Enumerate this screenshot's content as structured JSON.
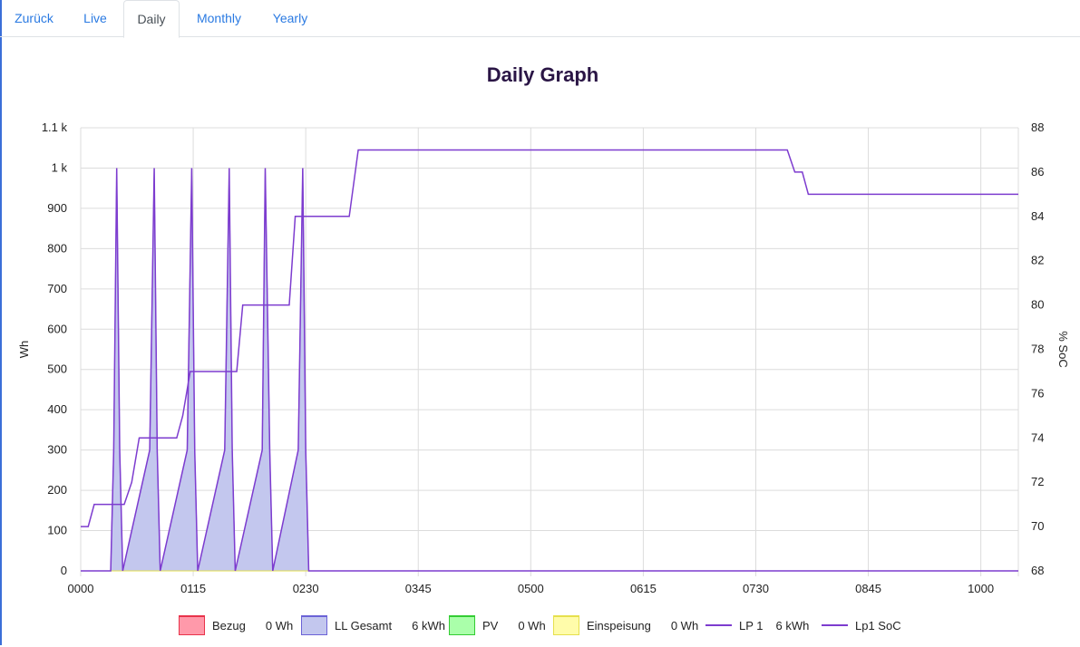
{
  "tabs": [
    {
      "label": "Zurück",
      "active": false
    },
    {
      "label": "Live",
      "active": false
    },
    {
      "label": "Daily",
      "active": true
    },
    {
      "label": "Monthly",
      "active": false
    },
    {
      "label": "Yearly",
      "active": false
    }
  ],
  "colors": {
    "tab_link": "#2a7ae2",
    "bezug": "#ff99aa",
    "bezug_border": "#e8334a",
    "ll_gesamt": "#c3c7ee",
    "ll_gesamt_border": "#7a4fd0",
    "pv": "#aaffaa",
    "pv_border": "#33cc33",
    "einspeisung": "#fffcaa",
    "einspeisung_border": "#e6e04d",
    "lp1": "#7d3ccf",
    "soc": "#7d3ccf"
  },
  "legend": [
    {
      "name": "Bezug",
      "value": "0 Wh",
      "kind": "fill",
      "color": "#ff99aa",
      "border": "#e8334a"
    },
    {
      "name": "LL Gesamt",
      "value": "6 kWh",
      "kind": "fill",
      "color": "#c3c7ee",
      "border": "#6b62d6"
    },
    {
      "name": "PV",
      "value": "0 Wh",
      "kind": "fill",
      "color": "#aaffaa",
      "border": "#33cc33"
    },
    {
      "name": "Einspeisung",
      "value": "0 Wh",
      "kind": "fill",
      "color": "#fffcaa",
      "border": "#e6e04d"
    },
    {
      "name": "LP 1",
      "value": "6 kWh",
      "kind": "line",
      "color": "#7d3ccf"
    },
    {
      "name": "Lp1 SoC",
      "value": "",
      "kind": "line",
      "color": "#7d3ccf"
    }
  ],
  "chart_data": {
    "type": "line",
    "title": "Daily Graph",
    "xlabel": "",
    "ylabel": "Wh",
    "y2label": "% SoC",
    "x_min_minutes": 0,
    "x_max_minutes": 625,
    "x_ticks": [
      {
        "minute": 0,
        "label": "0000"
      },
      {
        "minute": 75,
        "label": "0115"
      },
      {
        "minute": 150,
        "label": "0230"
      },
      {
        "minute": 225,
        "label": "0345"
      },
      {
        "minute": 300,
        "label": "0500"
      },
      {
        "minute": 375,
        "label": "0615"
      },
      {
        "minute": 450,
        "label": "0730"
      },
      {
        "minute": 525,
        "label": "0845"
      },
      {
        "minute": 600,
        "label": "1000"
      }
    ],
    "ylim": [
      0,
      1100
    ],
    "y_ticks": [
      {
        "value": 0,
        "label": "0"
      },
      {
        "value": 100,
        "label": "100"
      },
      {
        "value": 200,
        "label": "200"
      },
      {
        "value": 300,
        "label": "300"
      },
      {
        "value": 400,
        "label": "400"
      },
      {
        "value": 500,
        "label": "500"
      },
      {
        "value": 600,
        "label": "600"
      },
      {
        "value": 700,
        "label": "700"
      },
      {
        "value": 800,
        "label": "800"
      },
      {
        "value": 900,
        "label": "900"
      },
      {
        "value": 1000,
        "label": "1 k"
      },
      {
        "value": 1100,
        "label": "1.1 k"
      }
    ],
    "y2lim": [
      68,
      88
    ],
    "y2_ticks": [
      68,
      70,
      72,
      74,
      76,
      78,
      80,
      82,
      84,
      86,
      88
    ],
    "grid": true,
    "legend_position": "bottom",
    "series": [
      {
        "name": "LL Gesamt",
        "axis": "left",
        "style": "area",
        "points": [
          [
            0,
            0
          ],
          [
            20,
            0
          ],
          [
            22,
            300
          ],
          [
            24,
            1000
          ],
          [
            26,
            300
          ],
          [
            28,
            0
          ],
          [
            46,
            300
          ],
          [
            49,
            1000
          ],
          [
            51,
            300
          ],
          [
            53,
            0
          ],
          [
            71,
            300
          ],
          [
            74,
            1000
          ],
          [
            76,
            300
          ],
          [
            78,
            0
          ],
          [
            96,
            300
          ],
          [
            99,
            1000
          ],
          [
            101,
            300
          ],
          [
            103,
            0
          ],
          [
            121,
            300
          ],
          [
            123,
            1000
          ],
          [
            126,
            300
          ],
          [
            128,
            0
          ],
          [
            145,
            300
          ],
          [
            148,
            1000
          ],
          [
            150,
            300
          ],
          [
            152,
            0
          ],
          [
            625,
            0
          ]
        ]
      },
      {
        "name": "LP 1",
        "axis": "left",
        "style": "line",
        "points": [
          [
            0,
            0
          ],
          [
            20,
            0
          ],
          [
            22,
            300
          ],
          [
            24,
            1000
          ],
          [
            26,
            300
          ],
          [
            28,
            0
          ],
          [
            46,
            300
          ],
          [
            49,
            1000
          ],
          [
            51,
            300
          ],
          [
            53,
            0
          ],
          [
            71,
            300
          ],
          [
            74,
            1000
          ],
          [
            76,
            300
          ],
          [
            78,
            0
          ],
          [
            96,
            300
          ],
          [
            99,
            1000
          ],
          [
            101,
            300
          ],
          [
            103,
            0
          ],
          [
            121,
            300
          ],
          [
            123,
            1000
          ],
          [
            126,
            300
          ],
          [
            128,
            0
          ],
          [
            145,
            300
          ],
          [
            148,
            1000
          ],
          [
            150,
            300
          ],
          [
            152,
            0
          ],
          [
            625,
            0
          ]
        ]
      },
      {
        "name": "Lp1 SoC",
        "axis": "right",
        "style": "line",
        "points": [
          [
            0,
            70
          ],
          [
            5,
            70
          ],
          [
            9,
            71
          ],
          [
            29,
            71
          ],
          [
            34,
            72
          ],
          [
            39,
            74
          ],
          [
            64,
            74
          ],
          [
            68,
            75
          ],
          [
            73,
            77
          ],
          [
            104,
            77
          ],
          [
            108,
            80
          ],
          [
            139,
            80
          ],
          [
            143,
            84
          ],
          [
            179,
            84
          ],
          [
            185,
            87
          ],
          [
            471,
            87
          ],
          [
            476,
            86
          ],
          [
            481,
            86
          ],
          [
            485,
            85
          ],
          [
            625,
            85
          ]
        ]
      },
      {
        "name": "Bezug",
        "axis": "left",
        "style": "area",
        "points": [
          [
            0,
            0
          ],
          [
            625,
            0
          ]
        ]
      },
      {
        "name": "PV",
        "axis": "left",
        "style": "area",
        "points": [
          [
            0,
            0
          ],
          [
            625,
            0
          ]
        ]
      },
      {
        "name": "Einspeisung",
        "axis": "left",
        "style": "area",
        "points": [
          [
            0,
            0
          ],
          [
            625,
            0
          ]
        ]
      }
    ]
  }
}
